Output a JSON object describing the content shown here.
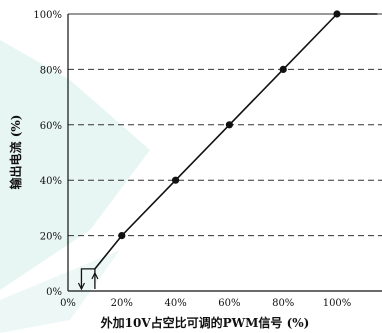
{
  "chart_data": {
    "type": "line",
    "title": "",
    "xlabel": "外加10V占空比可调的PWM信号 (%)",
    "ylabel": "输出电流 (%)",
    "xlim": [
      0,
      115
    ],
    "ylim": [
      0,
      100
    ],
    "x_ticks": [
      "0%",
      "20%",
      "40%",
      "60%",
      "80%",
      "100%"
    ],
    "y_ticks": [
      "0%",
      "20%",
      "40%",
      "60%",
      "80%",
      "100%"
    ],
    "x_tick_values": [
      0,
      20,
      40,
      60,
      80,
      100
    ],
    "y_tick_values": [
      0,
      20,
      40,
      60,
      80,
      100
    ],
    "grid": "horizontal-dashed",
    "series": [
      {
        "points": [
          [
            10,
            8
          ],
          [
            20,
            20
          ],
          [
            40,
            40
          ],
          [
            60,
            60
          ],
          [
            80,
            80
          ],
          [
            100,
            100
          ],
          [
            115,
            100
          ]
        ],
        "markers": [
          [
            20,
            20
          ],
          [
            40,
            40
          ],
          [
            60,
            60
          ],
          [
            80,
            80
          ],
          [
            100,
            100
          ]
        ]
      }
    ],
    "hysteresis": {
      "x_low": 5,
      "x_high": 10,
      "y_top": 8
    },
    "watermark_color": "#dff2ef"
  }
}
